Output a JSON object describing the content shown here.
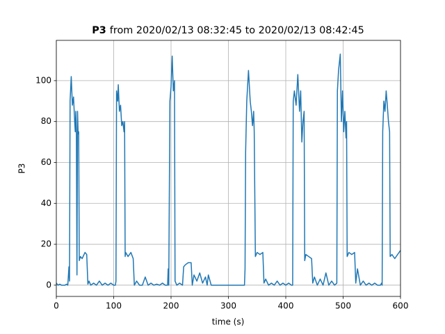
{
  "chart_data": {
    "type": "line",
    "title_bold": "P3",
    "title": "from 2020/02/13 08:32:45 to 2020/02/13 08:42:45",
    "xlabel": "time (s)",
    "ylabel": "P3",
    "xlim": [
      0,
      600
    ],
    "ylim": [
      -5.5,
      119.7
    ],
    "xticks": [
      0,
      100,
      200,
      300,
      400,
      500,
      600
    ],
    "yticks": [
      0,
      20,
      40,
      60,
      80,
      100
    ],
    "grid": true,
    "series": [
      {
        "name": "P3",
        "color": "#1f77b4",
        "x": [
          0,
          3,
          6,
          9,
          12,
          15,
          18,
          20,
          22,
          23,
          24,
          26,
          28,
          30,
          32,
          33,
          34,
          35,
          36,
          37,
          38,
          39,
          40,
          42,
          45,
          50,
          53,
          55,
          57,
          60,
          65,
          70,
          75,
          80,
          85,
          90,
          95,
          100,
          103,
          104,
          105,
          107,
          108,
          110,
          112,
          114,
          116,
          118,
          119,
          120,
          121,
          125,
          130,
          134,
          136,
          140,
          145,
          150,
          155,
          160,
          165,
          170,
          175,
          180,
          185,
          190,
          194,
          195,
          196,
          198,
          200,
          202,
          204,
          206,
          207,
          210,
          215,
          220,
          222,
          225,
          230,
          235,
          237,
          240,
          245,
          250,
          255,
          260,
          263,
          265,
          270,
          280,
          300,
          320,
          328,
          329,
          330,
          332,
          335,
          338,
          340,
          342,
          344,
          345,
          347,
          350,
          355,
          360,
          362,
          365,
          370,
          375,
          380,
          385,
          390,
          395,
          400,
          405,
          410,
          412,
          413,
          415,
          418,
          421,
          424,
          426,
          428,
          430,
          432,
          433,
          435,
          440,
          445,
          447,
          450,
          455,
          460,
          465,
          470,
          475,
          480,
          485,
          489,
          490,
          492,
          495,
          497,
          499,
          501,
          503,
          505,
          506,
          507,
          510,
          515,
          520,
          522,
          525,
          530,
          535,
          540,
          545,
          550,
          555,
          560,
          565,
          567,
          568,
          569,
          571,
          573,
          575,
          577,
          579,
          581,
          582,
          585,
          590,
          595,
          600
        ],
        "values": [
          1,
          0,
          0.5,
          0,
          0,
          0,
          0.5,
          0,
          9,
          2,
          90,
          102,
          88,
          92,
          80,
          75,
          85,
          73,
          5,
          85,
          74,
          75,
          12,
          14,
          13,
          16,
          15,
          0.5,
          2,
          0,
          1,
          0,
          2,
          0,
          1,
          0,
          1,
          0,
          0,
          2,
          95,
          90,
          98,
          85,
          88,
          78,
          80,
          75,
          80,
          14,
          16,
          14,
          16,
          13,
          0,
          2,
          0,
          0,
          4,
          0,
          1,
          0,
          0.5,
          0,
          1,
          0,
          0,
          8,
          0,
          90,
          97,
          112,
          95,
          100,
          2,
          0,
          1,
          0,
          9,
          10,
          11,
          11,
          0,
          5,
          2,
          6,
          1,
          4,
          0,
          5,
          0,
          0,
          0,
          0,
          0,
          8,
          65,
          90,
          105,
          90,
          85,
          78,
          85,
          75,
          14,
          16,
          15,
          16,
          1,
          3,
          0,
          1,
          0,
          2,
          0,
          1,
          0,
          1,
          0,
          0,
          90,
          95,
          88,
          103,
          85,
          95,
          70,
          80,
          85,
          12,
          15,
          14,
          13,
          1,
          4,
          0,
          3,
          0,
          6,
          0,
          2,
          0,
          1,
          95,
          105,
          113,
          80,
          95,
          75,
          85,
          72,
          80,
          14,
          16,
          15,
          16,
          1,
          8,
          0,
          2,
          0,
          1,
          0,
          1,
          0,
          0,
          1,
          0,
          75,
          90,
          85,
          95,
          88,
          80,
          75,
          14,
          15,
          13,
          15,
          17
        ]
      }
    ]
  }
}
